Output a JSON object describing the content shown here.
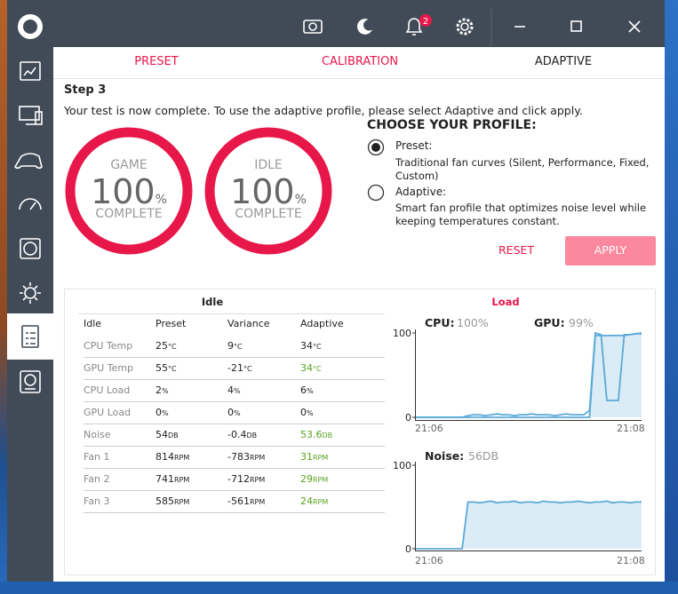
{
  "topbar": {
    "notification_count": 2
  },
  "tabs": [
    {
      "label": "PRESET",
      "color": "#e8174a"
    },
    {
      "label": "CALIBRATION",
      "color": "#e8174a"
    },
    {
      "label": "ADAPTIVE",
      "color": "#222222"
    }
  ],
  "step": {
    "title": "Step 3",
    "message": "Your test is now complete. To use the adaptive profile, please select Adaptive and click apply."
  },
  "gauges": [
    {
      "label": "GAME",
      "value": 100,
      "unit": "%",
      "status": "COMPLETE"
    },
    {
      "label": "IDLE",
      "value": 100,
      "unit": "%",
      "status": "COMPLETE"
    }
  ],
  "profile": {
    "title": "CHOOSE YOUR PROFILE:",
    "options": [
      {
        "name": "Preset:",
        "description": "Traditional fan curves (Silent, Performance, Fixed, Custom)",
        "selected": true
      },
      {
        "name": "Adaptive:",
        "description": "Smart fan profile that optimizes noise level while keeping temperatures constant.",
        "selected": false
      }
    ]
  },
  "buttons": {
    "reset": "RESET",
    "apply": "APPLY"
  },
  "idle_table": {
    "title": "Idle",
    "columns": [
      "Idle",
      "Preset",
      "Variance",
      "Adaptive"
    ],
    "rows": [
      {
        "label": "CPU Temp",
        "cells": [
          {
            "v": "25",
            "u": "°C"
          },
          {
            "v": "9",
            "u": "°C"
          },
          {
            "v": "34",
            "u": "°C",
            "color": "#222222"
          }
        ]
      },
      {
        "label": "GPU Temp",
        "cells": [
          {
            "v": "55",
            "u": "°C"
          },
          {
            "v": "-21",
            "u": "°C"
          },
          {
            "v": "34",
            "u": "°C",
            "color": "#5aa320"
          }
        ]
      },
      {
        "label": "CPU Load",
        "cells": [
          {
            "v": "2",
            "u": "%"
          },
          {
            "v": "4",
            "u": "%"
          },
          {
            "v": "6",
            "u": "%",
            "color": "#222222"
          }
        ]
      },
      {
        "label": "GPU Load",
        "cells": [
          {
            "v": "0",
            "u": "%"
          },
          {
            "v": "0",
            "u": "%"
          },
          {
            "v": "0",
            "u": "%",
            "color": "#222222"
          }
        ]
      },
      {
        "label": "Noise",
        "cells": [
          {
            "v": "54",
            "u": "DB"
          },
          {
            "v": "-0.4",
            "u": "DB"
          },
          {
            "v": "53.6",
            "u": "DB",
            "color": "#5aa320"
          }
        ]
      },
      {
        "label": "Fan 1",
        "cells": [
          {
            "v": "814",
            "u": "RPM"
          },
          {
            "v": "-783",
            "u": "RPM"
          },
          {
            "v": "31",
            "u": "RPM",
            "color": "#5aa320"
          }
        ]
      },
      {
        "label": "Fan 2",
        "cells": [
          {
            "v": "741",
            "u": "RPM"
          },
          {
            "v": "-712",
            "u": "RPM"
          },
          {
            "v": "29",
            "u": "RPM",
            "color": "#5aa320"
          }
        ]
      },
      {
        "label": "Fan 3",
        "cells": [
          {
            "v": "585",
            "u": "RPM"
          },
          {
            "v": "-561",
            "u": "RPM"
          },
          {
            "v": "24",
            "u": "RPM",
            "color": "#5aa320"
          }
        ]
      }
    ]
  },
  "load": {
    "title": "Load",
    "charts": [
      {
        "ylim": [
          0,
          100
        ],
        "yticks": [
          100,
          0
        ],
        "xticks": [
          "21:06",
          "21:08"
        ],
        "series": [
          {
            "name": "CPU:",
            "readout": "100%",
            "style": "line",
            "color": "#5aaad8",
            "values": [
              0,
              0,
              0,
              0,
              0,
              0,
              0,
              0,
              0,
              2,
              3,
              3,
              2,
              3,
              4,
              3,
              3,
              2,
              3,
              3,
              4,
              3,
              3,
              3,
              2,
              3,
              4,
              3,
              3,
              3,
              8,
              100,
              98,
              20,
              20,
              20,
              98,
              98,
              99,
              100
            ]
          },
          {
            "name": "GPU:",
            "readout": "99%",
            "style": "area",
            "color": "#5aaad8",
            "values": [
              0,
              0,
              0,
              0,
              0,
              0,
              0,
              0,
              0,
              0,
              0,
              0,
              0,
              0,
              0,
              0,
              0,
              0,
              0,
              0,
              0,
              0,
              0,
              0,
              0,
              0,
              0,
              0,
              0,
              0,
              0,
              97,
              97,
              97,
              97,
              97,
              97,
              98,
              99,
              99
            ]
          }
        ]
      },
      {
        "ylim": [
          0,
          100
        ],
        "yticks": [
          100,
          0
        ],
        "xticks": [
          "21:06",
          "21:08"
        ],
        "series": [
          {
            "name": "Noise:",
            "readout": "56DB",
            "style": "area",
            "color": "#5aaad8",
            "values": [
              0,
              0,
              0,
              0,
              0,
              0,
              0,
              0,
              0,
              56,
              56,
              55,
              56,
              57,
              55,
              56,
              56,
              57,
              55,
              56,
              56,
              55,
              57,
              56,
              56,
              55,
              56,
              56,
              57,
              56,
              55,
              56,
              56,
              57,
              55,
              56,
              56,
              55,
              56,
              56
            ]
          }
        ]
      }
    ]
  }
}
